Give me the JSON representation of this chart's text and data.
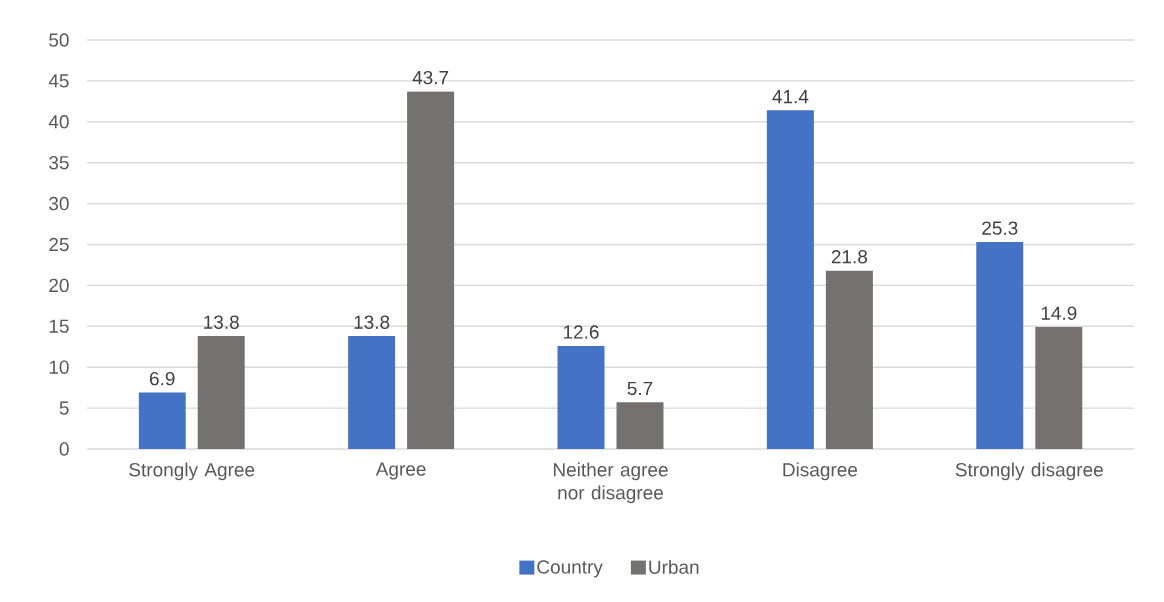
{
  "chart_data": {
    "type": "bar",
    "categories": [
      "Strongly Agree",
      "Agree",
      "Neither agree nor disagree",
      "Disagree",
      "Strongly disagree"
    ],
    "series": [
      {
        "name": "Country",
        "color": "#4472c4",
        "values": [
          6.9,
          13.8,
          12.6,
          41.4,
          25.3
        ]
      },
      {
        "name": "Urban",
        "color": "#767171",
        "values": [
          13.8,
          43.7,
          5.7,
          21.8,
          14.9
        ]
      }
    ],
    "ylim": [
      0,
      50
    ],
    "yticks": [
      0,
      5,
      10,
      15,
      20,
      25,
      30,
      35,
      40,
      45,
      50
    ],
    "grid": "y",
    "data_labels": true,
    "legend": "bottom"
  }
}
